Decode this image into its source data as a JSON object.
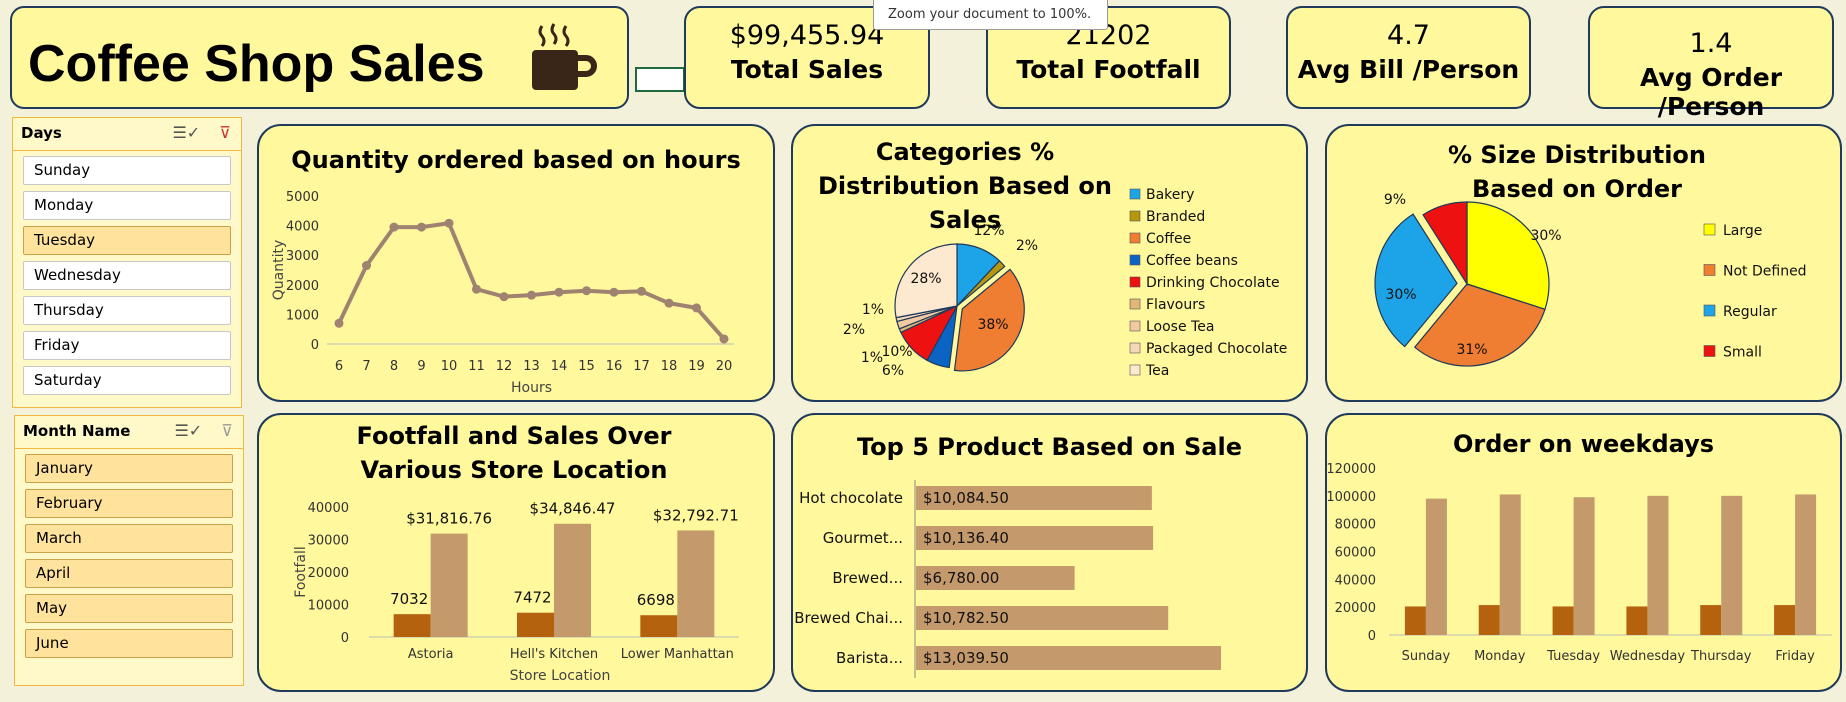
{
  "title": "Coffee Shop Sales",
  "tooltip": "Zoom your document to 100%.",
  "kpis": [
    {
      "value": "$99,455.94",
      "label": "Total Sales"
    },
    {
      "value": "21202",
      "label": "Total Footfall"
    },
    {
      "value": "4.7",
      "label": "Avg Bill /Person"
    },
    {
      "value": "1.4",
      "label": "Avg Order /Person"
    }
  ],
  "days_slicer": {
    "header": "Days",
    "items": [
      {
        "label": "Sunday",
        "selected": false
      },
      {
        "label": "Monday",
        "selected": false
      },
      {
        "label": "Tuesday",
        "selected": true
      },
      {
        "label": "Wednesday",
        "selected": false
      },
      {
        "label": "Thursday",
        "selected": false
      },
      {
        "label": "Friday",
        "selected": false
      },
      {
        "label": "Saturday",
        "selected": false
      }
    ]
  },
  "month_slicer": {
    "header": "Month Name",
    "items": [
      {
        "label": "January",
        "selected": true
      },
      {
        "label": "February",
        "selected": true
      },
      {
        "label": "March",
        "selected": true
      },
      {
        "label": "April",
        "selected": true
      },
      {
        "label": "May",
        "selected": true
      },
      {
        "label": "June",
        "selected": true
      }
    ]
  },
  "colors": {
    "tan": "#c49a6c",
    "brown": "#b5620e",
    "line": "#a08270"
  },
  "chart_data": [
    {
      "id": "hours",
      "type": "line",
      "title": "Quantity ordered based on hours",
      "xlabel": "Hours",
      "ylabel": "Quantity",
      "x": [
        6,
        7,
        8,
        9,
        10,
        11,
        12,
        13,
        14,
        15,
        16,
        17,
        18,
        19,
        20
      ],
      "values": [
        700,
        2650,
        3950,
        3950,
        4080,
        1850,
        1600,
        1650,
        1750,
        1800,
        1750,
        1780,
        1380,
        1220,
        170
      ],
      "ylim": [
        0,
        5000
      ],
      "yticks": [
        0,
        1000,
        2000,
        3000,
        4000,
        5000
      ],
      "grid": false
    },
    {
      "id": "categories",
      "type": "pie",
      "title": "Categories % Distribution Based on Sales",
      "categories": [
        "Bakery",
        "Branded",
        "Coffee",
        "Coffee beans",
        "Drinking Chocolate",
        "Flavours",
        "Loose Tea",
        "Packaged Chocolate",
        "Tea"
      ],
      "values": [
        12,
        2,
        38,
        6,
        10,
        1,
        2,
        1,
        28
      ],
      "labels": [
        "12%",
        "2%",
        "38%",
        "6%",
        "10%",
        "1%",
        "2%",
        "1%",
        "28%"
      ],
      "colors": [
        "#1ca3e8",
        "#b8960c",
        "#ef7d32",
        "#0b63c4",
        "#ee1111",
        "#e0b878",
        "#f2c9a0",
        "#f5d8b8",
        "#fde8d0"
      ],
      "legend": "right"
    },
    {
      "id": "sizes",
      "type": "pie",
      "title": "% Size Distribution Based on Order",
      "categories": [
        "Large",
        "Not Defined",
        "Regular",
        "Small"
      ],
      "values": [
        30,
        31,
        30,
        9
      ],
      "labels": [
        "30%",
        "31%",
        "30%",
        "9%"
      ],
      "colors": [
        "#ffff00",
        "#ef7d32",
        "#1ca3e8",
        "#ee1111"
      ],
      "legend": "right"
    },
    {
      "id": "stores",
      "type": "bar",
      "title": "Footfall and Sales Over Various Store Location",
      "xlabel": "Store Location",
      "ylabel": "Footfall",
      "categories": [
        "Astoria",
        "Hell's Kitchen",
        "Lower Manhattan"
      ],
      "series": [
        {
          "values": [
            7032,
            7472,
            6698
          ],
          "labels": [
            "7032",
            "7472",
            "6698"
          ]
        },
        {
          "values": [
            31816.76,
            34846.47,
            32792.71
          ],
          "labels": [
            "$31,816.76",
            "$34,846.47",
            "$32,792.71"
          ]
        }
      ],
      "ylim": [
        0,
        40000
      ],
      "yticks": [
        0,
        10000,
        20000,
        30000,
        40000
      ]
    },
    {
      "id": "top5",
      "type": "bar",
      "orientation": "horizontal",
      "title": "Top 5 Product Based on Sale",
      "categories": [
        "Hot chocolate",
        "Gourmet...",
        "Brewed...",
        "Brewed Chai...",
        "Barista..."
      ],
      "values": [
        10084.5,
        10136.4,
        6780.0,
        10782.5,
        13039.5
      ],
      "labels": [
        "$10,084.50",
        "$10,136.40",
        "$6,780.00",
        "$10,782.50",
        "$13,039.50"
      ]
    },
    {
      "id": "weekdays",
      "type": "bar",
      "title": "Order on weekdays",
      "categories": [
        "Sunday",
        "Monday",
        "Tuesday",
        "Wednesday",
        "Thursday",
        "Friday"
      ],
      "series": [
        {
          "values": [
            20500,
            21500,
            20500,
            20500,
            21500,
            21500
          ]
        },
        {
          "values": [
            98000,
            101000,
            99000,
            100000,
            100000,
            101000
          ]
        }
      ],
      "ylim": [
        0,
        120000
      ],
      "yticks": [
        0,
        20000,
        40000,
        60000,
        80000,
        100000,
        120000
      ]
    }
  ]
}
